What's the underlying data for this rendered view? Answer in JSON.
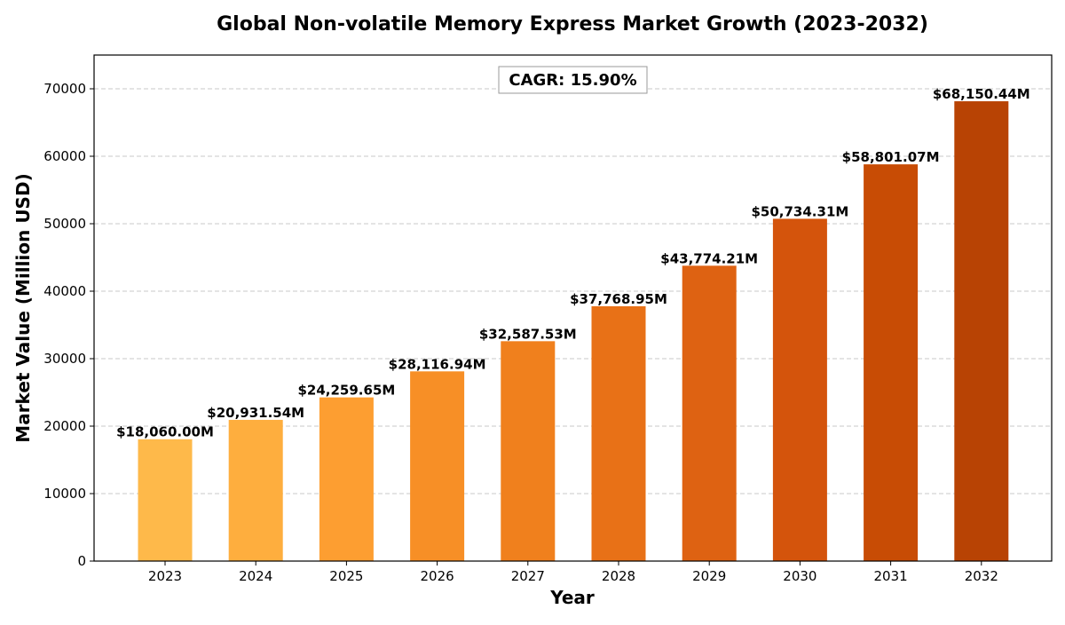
{
  "chart_data": {
    "type": "bar",
    "title": "Global Non-volatile Memory Express Market Growth (2023-2032)",
    "xlabel": "Year",
    "ylabel": "Market Value (Million USD)",
    "categories": [
      "2023",
      "2024",
      "2025",
      "2026",
      "2027",
      "2028",
      "2029",
      "2030",
      "2031",
      "2032"
    ],
    "values": [
      18060.0,
      20931.54,
      24259.65,
      28116.94,
      32587.53,
      37768.95,
      43774.21,
      50734.31,
      58801.07,
      68150.44
    ],
    "data_labels": [
      "$18,060.00M",
      "$20,931.54M",
      "$24,259.65M",
      "$28,116.94M",
      "$32,587.53M",
      "$37,768.95M",
      "$43,774.21M",
      "$50,734.31M",
      "$58,801.07M",
      "$68,150.44M"
    ],
    "bar_colors": [
      "#feb94a",
      "#feae3e",
      "#fd9e31",
      "#f78f26",
      "#f0801d",
      "#e87117",
      "#de6212",
      "#d4540c",
      "#c84c05",
      "#b84304"
    ],
    "ylim": [
      0,
      75000
    ],
    "yticks": [
      0,
      10000,
      20000,
      30000,
      40000,
      50000,
      60000,
      70000
    ],
    "ytick_labels": [
      "0",
      "10000",
      "20000",
      "30000",
      "40000",
      "50000",
      "60000",
      "70000"
    ],
    "grid": true,
    "annotation": "CAGR: 15.90%",
    "annotation_position": "top-center"
  }
}
